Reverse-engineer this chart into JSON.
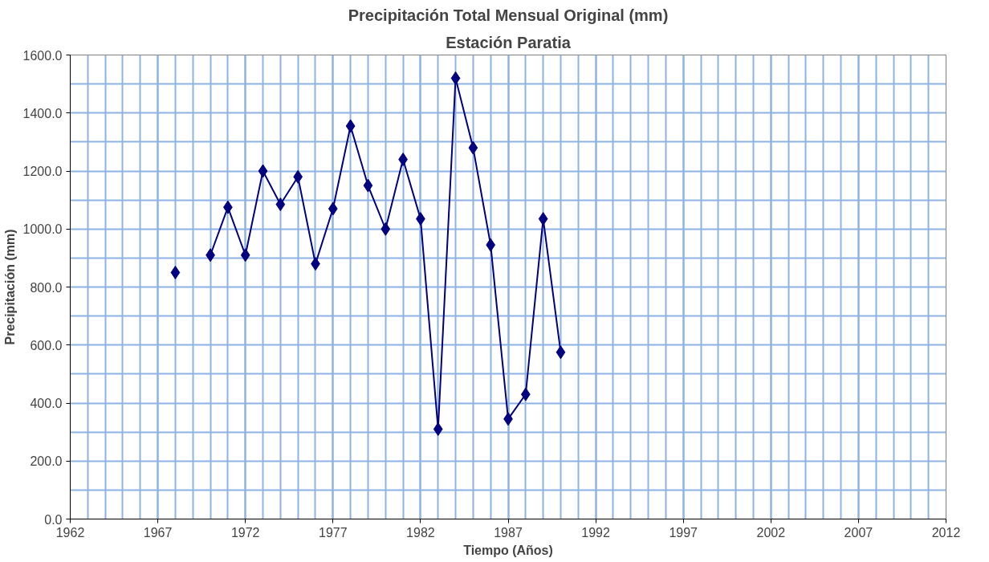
{
  "chart_data": {
    "type": "line",
    "title": "Precipitación Total Mensual Original (mm)",
    "subtitle": "Estación Paratia",
    "xlabel": "Tiempo (Años)",
    "ylabel": "Precipitación (mm)",
    "x": [
      1968,
      1969,
      1970,
      1971,
      1972,
      1973,
      1974,
      1975,
      1976,
      1977,
      1978,
      1979,
      1980,
      1981,
      1982,
      1983,
      1984,
      1985,
      1986,
      1987,
      1988,
      1989,
      1990
    ],
    "series": [
      {
        "color": "#000080",
        "values": [
          850,
          null,
          910,
          1075,
          910,
          1200,
          1085,
          1180,
          880,
          1070,
          1355,
          1150,
          1000,
          1240,
          1035,
          310,
          1520,
          1280,
          945,
          345,
          430,
          1035,
          575
        ]
      }
    ],
    "xlim": [
      1962,
      2012
    ],
    "xticks": [
      1962,
      1967,
      1972,
      1977,
      1982,
      1987,
      1992,
      1997,
      2002,
      2007,
      2012
    ],
    "ylim": [
      0,
      1600
    ],
    "yticks": [
      {
        "value": 0,
        "label": "0.0"
      },
      {
        "value": 200,
        "label": "200.0"
      },
      {
        "value": 400,
        "label": "400.0"
      },
      {
        "value": 600,
        "label": "600.0"
      },
      {
        "value": 800,
        "label": "800.0"
      },
      {
        "value": 1000,
        "label": "1000.0"
      },
      {
        "value": 1200,
        "label": "1200.0"
      },
      {
        "value": 1400,
        "label": "1400.0"
      },
      {
        "value": 1600,
        "label": "1600.0"
      }
    ],
    "grid": true,
    "marker": "diamond",
    "line_style": "solid"
  }
}
